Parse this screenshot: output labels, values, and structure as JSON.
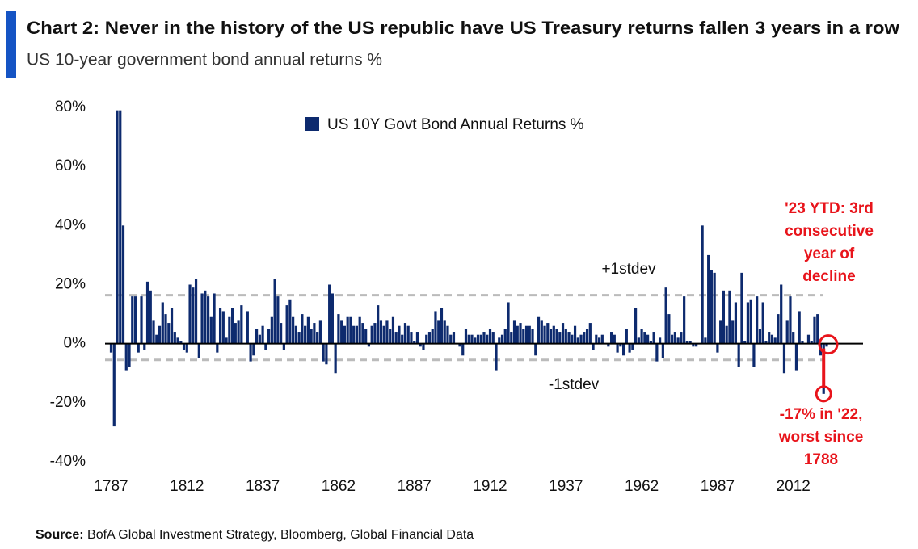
{
  "chart_data": {
    "type": "bar",
    "title": "Chart 2: Never in the history of the US republic have US Treasury returns fallen 3 years in a row",
    "subtitle": "US 10-year government bond annual returns %",
    "source_label": "Source:",
    "source": "BofA Global Investment Strategy, Bloomberg, Global Financial Data",
    "x": [
      1787,
      1788,
      1789,
      1790,
      1791,
      1792,
      1793,
      1794,
      1795,
      1796,
      1797,
      1798,
      1799,
      1800,
      1801,
      1802,
      1803,
      1804,
      1805,
      1806,
      1807,
      1808,
      1809,
      1810,
      1811,
      1812,
      1813,
      1814,
      1815,
      1816,
      1817,
      1818,
      1819,
      1820,
      1821,
      1822,
      1823,
      1824,
      1825,
      1826,
      1827,
      1828,
      1829,
      1830,
      1831,
      1832,
      1833,
      1834,
      1835,
      1836,
      1837,
      1838,
      1839,
      1840,
      1841,
      1842,
      1843,
      1844,
      1845,
      1846,
      1847,
      1848,
      1849,
      1850,
      1851,
      1852,
      1853,
      1854,
      1855,
      1856,
      1857,
      1858,
      1859,
      1860,
      1861,
      1862,
      1863,
      1864,
      1865,
      1866,
      1867,
      1868,
      1869,
      1870,
      1871,
      1872,
      1873,
      1874,
      1875,
      1876,
      1877,
      1878,
      1879,
      1880,
      1881,
      1882,
      1883,
      1884,
      1885,
      1886,
      1887,
      1888,
      1889,
      1890,
      1891,
      1892,
      1893,
      1894,
      1895,
      1896,
      1897,
      1898,
      1899,
      1900,
      1901,
      1902,
      1903,
      1904,
      1905,
      1906,
      1907,
      1908,
      1909,
      1910,
      1911,
      1912,
      1913,
      1914,
      1915,
      1916,
      1917,
      1918,
      1919,
      1920,
      1921,
      1922,
      1923,
      1924,
      1925,
      1926,
      1927,
      1928,
      1929,
      1930,
      1931,
      1932,
      1933,
      1934,
      1935,
      1936,
      1937,
      1938,
      1939,
      1940,
      1941,
      1942,
      1943,
      1944,
      1945,
      1946,
      1947,
      1948,
      1949,
      1950,
      1951,
      1952,
      1953,
      1954,
      1955,
      1956,
      1957,
      1958,
      1959,
      1960,
      1961,
      1962,
      1963,
      1964,
      1965,
      1966,
      1967,
      1968,
      1969,
      1970,
      1971,
      1972,
      1973,
      1974,
      1975,
      1976,
      1977,
      1978,
      1979,
      1980,
      1981,
      1982,
      1983,
      1984,
      1985,
      1986,
      1987,
      1988,
      1989,
      1990,
      1991,
      1992,
      1993,
      1994,
      1995,
      1996,
      1997,
      1998,
      1999,
      2000,
      2001,
      2002,
      2003,
      2004,
      2005,
      2006,
      2007,
      2008,
      2009,
      2010,
      2011,
      2012,
      2013,
      2014,
      2015,
      2016,
      2017,
      2018,
      2019,
      2020,
      2021,
      2022,
      2023
    ],
    "series": [
      {
        "name": "US 10Y Govt Bond Annual Returns %",
        "color": "#0d2a6e",
        "values": [
          -3,
          -28,
          79,
          79,
          40,
          -9,
          -8,
          16,
          16,
          -3,
          16,
          -2,
          21,
          18,
          8,
          3,
          6,
          14,
          10,
          7,
          12,
          4,
          2,
          1,
          -2,
          -3,
          20,
          19,
          22,
          -5,
          17,
          18,
          16,
          9,
          17,
          -3,
          12,
          11,
          2,
          9,
          12,
          7,
          8,
          13,
          0,
          11,
          -6,
          -4,
          5,
          3,
          6,
          -2,
          5,
          9,
          22,
          16,
          7,
          -2,
          13,
          15,
          9,
          6,
          4,
          10,
          6,
          9,
          5,
          7,
          4,
          8,
          -6,
          -7,
          20,
          17,
          -10,
          10,
          8,
          6,
          9,
          9,
          6,
          6,
          9,
          7,
          5,
          -1,
          6,
          7,
          13,
          8,
          6,
          8,
          5,
          9,
          4,
          6,
          3,
          7,
          6,
          4,
          1,
          4,
          -1,
          -2,
          3,
          4,
          5,
          11,
          8,
          12,
          8,
          6,
          3,
          4,
          0,
          -1,
          -4,
          5,
          3,
          3,
          2,
          3,
          3,
          4,
          3,
          5,
          4,
          -9,
          2,
          3,
          5,
          14,
          4,
          8,
          6,
          7,
          5,
          6,
          6,
          5,
          -4,
          9,
          8,
          6,
          7,
          5,
          6,
          5,
          4,
          7,
          5,
          4,
          3,
          6,
          2,
          3,
          4,
          5,
          7,
          -2,
          3,
          2,
          3,
          0,
          -1,
          4,
          3,
          -3,
          -1,
          -4,
          5,
          -3,
          -2,
          12,
          2,
          5,
          4,
          3,
          1,
          4,
          -6,
          2,
          -5,
          19,
          10,
          3,
          4,
          2,
          4,
          16,
          1,
          1,
          -1,
          -1,
          0,
          40,
          2,
          30,
          25,
          24,
          -3,
          8,
          18,
          6,
          18,
          8,
          14,
          -8,
          24,
          1,
          14,
          15,
          -8,
          16,
          5,
          14,
          1,
          4,
          3,
          2,
          10,
          20,
          -10,
          8,
          16,
          4,
          -9,
          11,
          1,
          0,
          3,
          1,
          9,
          10,
          -4,
          -17,
          -1
        ]
      }
    ],
    "xlim": [
      1785,
      2035
    ],
    "xticks": [
      1787,
      1812,
      1837,
      1862,
      1887,
      1912,
      1937,
      1962,
      1987,
      2012
    ],
    "ylim": [
      -40,
      80
    ],
    "yticks": [
      {
        "value": -40,
        "label": "-40%"
      },
      {
        "value": -20,
        "label": "-20%"
      },
      {
        "value": 0,
        "label": "0%"
      },
      {
        "value": 20,
        "label": "20%"
      },
      {
        "value": 40,
        "label": "40%"
      },
      {
        "value": 60,
        "label": "60%"
      },
      {
        "value": 80,
        "label": "80%"
      }
    ],
    "reference_lines": [
      {
        "value": 16.4,
        "label": "+1stdev"
      },
      {
        "value": -5.5,
        "label": "-1stdev"
      }
    ],
    "annotations": [
      {
        "lines": [
          "'23 YTD: 3rd",
          "consecutive",
          "year of",
          "decline"
        ]
      },
      {
        "lines": [
          "-17% in '22,",
          "worst since",
          "1788"
        ]
      }
    ],
    "legend": "top"
  }
}
